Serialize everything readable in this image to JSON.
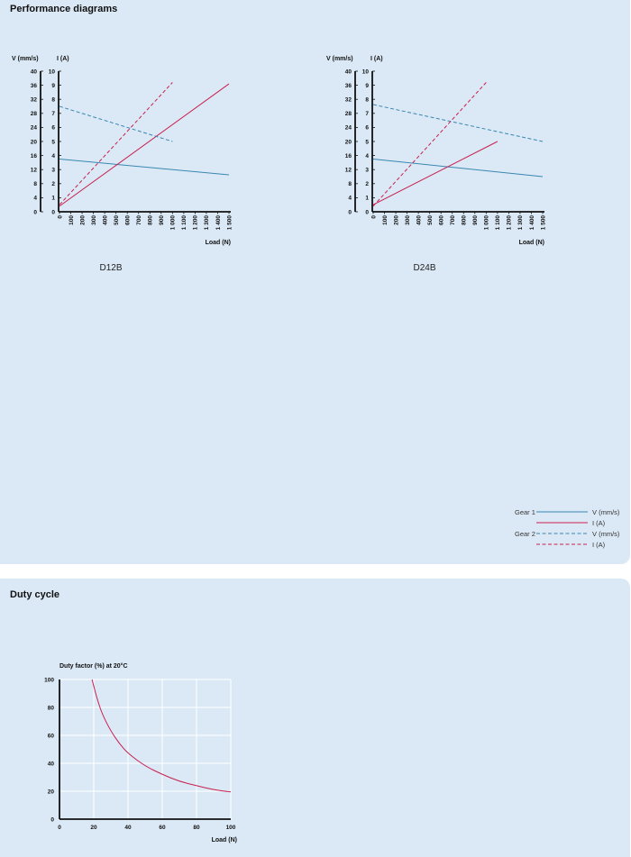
{
  "sections": {
    "performance_title": "Performance diagrams",
    "duty_title": "Duty cycle"
  },
  "colors": {
    "speed": "#3a87b0",
    "current": "#c8204e",
    "panel": "#dbe9f6"
  },
  "legend": {
    "gear1": "Gear 1",
    "gear2": "Gear 2",
    "v_label": "V (mm/s)",
    "i_label": "I (A)"
  },
  "chart_data": [
    {
      "type": "line",
      "name": "D12B",
      "ylabel_left": "V (mm/s)",
      "ylabel_right": "I (A)",
      "xlabel": "Load (N)",
      "xlim": [
        0,
        1500
      ],
      "ylim_v": [
        0,
        40
      ],
      "ylim_i": [
        0,
        10
      ],
      "x_ticks": [
        "0",
        "100",
        "200",
        "300",
        "400",
        "500",
        "600",
        "700",
        "800",
        "900",
        "1 000",
        "1 100",
        "1 200",
        "1 300",
        "1 400",
        "1 500"
      ],
      "v_ticks": [
        "0",
        "4",
        "8",
        "12",
        "16",
        "20",
        "24",
        "28",
        "32",
        "36",
        "40"
      ],
      "i_ticks": [
        "0",
        "1",
        "2",
        "3",
        "4",
        "5",
        "6",
        "7",
        "8",
        "9",
        "10"
      ],
      "series": [
        {
          "axis": "v",
          "gear": 1,
          "x": [
            0,
            1500
          ],
          "y": [
            15,
            10.5
          ]
        },
        {
          "axis": "i",
          "gear": 1,
          "x": [
            0,
            1500
          ],
          "y": [
            0.4,
            9.1
          ]
        },
        {
          "axis": "v",
          "gear": 2,
          "x": [
            0,
            1000
          ],
          "y": [
            30,
            20
          ]
        },
        {
          "axis": "i",
          "gear": 2,
          "x": [
            0,
            1000
          ],
          "y": [
            0.5,
            9.2
          ]
        }
      ]
    },
    {
      "type": "line",
      "name": "D24B",
      "ylabel_left": "V (mm/s)",
      "ylabel_right": "I (A)",
      "xlabel": "Load (N)",
      "xlim": [
        0,
        1500
      ],
      "ylim_v": [
        0,
        40
      ],
      "ylim_i": [
        0,
        10
      ],
      "x_ticks": [
        "0",
        "100",
        "200",
        "300",
        "400",
        "500",
        "600",
        "700",
        "800",
        "900",
        "1 000",
        "1 100",
        "1 200",
        "1 300",
        "1 400",
        "1 500"
      ],
      "v_ticks": [
        "0",
        "4",
        "8",
        "12",
        "16",
        "20",
        "24",
        "28",
        "32",
        "36",
        "40"
      ],
      "i_ticks": [
        "0",
        "1",
        "2",
        "3",
        "4",
        "5",
        "6",
        "7",
        "8",
        "9",
        "10"
      ],
      "series": [
        {
          "axis": "v",
          "gear": 1,
          "x": [
            0,
            1500
          ],
          "y": [
            15,
            10
          ]
        },
        {
          "axis": "i",
          "gear": 1,
          "x": [
            0,
            1100
          ],
          "y": [
            0.5,
            5
          ]
        },
        {
          "axis": "v",
          "gear": 2,
          "x": [
            0,
            1500
          ],
          "y": [
            30.5,
            20
          ]
        },
        {
          "axis": "i",
          "gear": 2,
          "x": [
            0,
            1000
          ],
          "y": [
            0.4,
            9.2
          ]
        }
      ]
    },
    {
      "type": "line",
      "ylabel": "Duty factor (%) at 20°C",
      "xlabel": "Load (N)",
      "xlim": [
        0,
        100
      ],
      "ylim": [
        0,
        100
      ],
      "x_ticks": [
        "0",
        "20",
        "40",
        "60",
        "80",
        "100"
      ],
      "y_ticks": [
        "0",
        "20",
        "40",
        "60",
        "80",
        "100"
      ],
      "grid": true,
      "series": [
        {
          "x": [
            19,
            22,
            25,
            30,
            35,
            40,
            50,
            60,
            70,
            80,
            90,
            100
          ],
          "y": [
            100,
            86,
            75,
            63,
            54,
            47,
            38,
            32,
            27,
            24,
            21,
            19.5
          ]
        }
      ]
    }
  ]
}
